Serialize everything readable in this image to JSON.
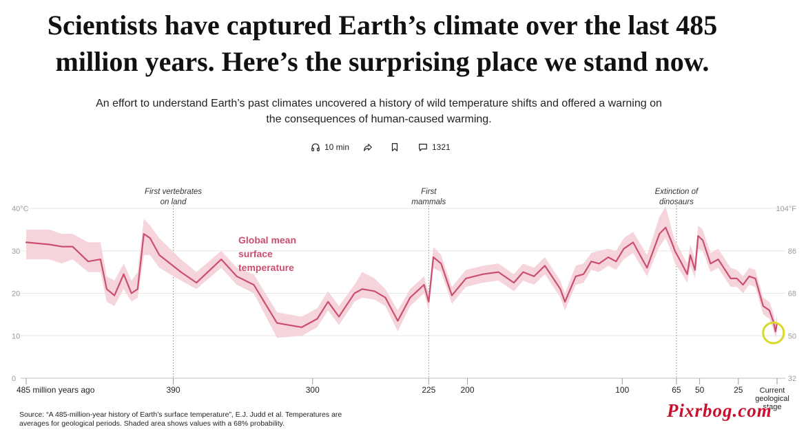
{
  "article": {
    "headline_line1": "Scientists have captured Earth’s climate over the last 485",
    "headline_line2": "million years. Here’s the surprising place we stand now.",
    "dek_line1": "An effort to understand Earth’s past climates uncovered a history of wild temperature shifts and offered a warning on",
    "dek_line2": "the consequences of human-caused warming.",
    "read_time": "10 min",
    "comment_count": "1321"
  },
  "icons": {
    "listen": "headphones-icon",
    "share": "share-arrow-icon",
    "save": "bookmark-icon",
    "comments": "comment-bubble-icon"
  },
  "chart_data": {
    "type": "line",
    "title": "",
    "xlabel": "",
    "ylabel": "",
    "series": [
      {
        "name": "Global mean surface temperature",
        "color": "#c94f6d",
        "band_color": "#f6d4dc",
        "points": [
          {
            "x": 485,
            "y": 32,
            "lo": 28,
            "hi": 35
          },
          {
            "x": 470,
            "y": 31.5,
            "lo": 28,
            "hi": 35
          },
          {
            "x": 462,
            "y": 31,
            "lo": 27,
            "hi": 34
          },
          {
            "x": 455,
            "y": 31,
            "lo": 28,
            "hi": 34
          },
          {
            "x": 445,
            "y": 27.5,
            "lo": 25,
            "hi": 32
          },
          {
            "x": 437,
            "y": 28,
            "lo": 25,
            "hi": 32
          },
          {
            "x": 433,
            "y": 21,
            "lo": 18,
            "hi": 24
          },
          {
            "x": 428,
            "y": 19.5,
            "lo": 17,
            "hi": 23
          },
          {
            "x": 422,
            "y": 24.5,
            "lo": 21,
            "hi": 27
          },
          {
            "x": 417,
            "y": 20,
            "lo": 18,
            "hi": 23
          },
          {
            "x": 413,
            "y": 21,
            "lo": 19,
            "hi": 25
          },
          {
            "x": 409,
            "y": 34,
            "lo": 29,
            "hi": 37.5
          },
          {
            "x": 405,
            "y": 33,
            "lo": 29,
            "hi": 36
          },
          {
            "x": 399,
            "y": 29,
            "lo": 26,
            "hi": 33
          },
          {
            "x": 385,
            "y": 25,
            "lo": 23,
            "hi": 28
          },
          {
            "x": 375,
            "y": 22.5,
            "lo": 21,
            "hi": 25
          },
          {
            "x": 359,
            "y": 28,
            "lo": 26,
            "hi": 30
          },
          {
            "x": 349,
            "y": 24,
            "lo": 22,
            "hi": 26
          },
          {
            "x": 338,
            "y": 22,
            "lo": 20,
            "hi": 24.5
          },
          {
            "x": 323,
            "y": 13,
            "lo": 9.5,
            "hi": 15.5
          },
          {
            "x": 307,
            "y": 12,
            "lo": 10,
            "hi": 14.5
          },
          {
            "x": 297,
            "y": 14,
            "lo": 12,
            "hi": 16.5
          },
          {
            "x": 290,
            "y": 18,
            "lo": 16,
            "hi": 20.5
          },
          {
            "x": 283,
            "y": 14.5,
            "lo": 12.5,
            "hi": 17
          },
          {
            "x": 273,
            "y": 20,
            "lo": 18,
            "hi": 22
          },
          {
            "x": 268,
            "y": 21,
            "lo": 19,
            "hi": 25
          },
          {
            "x": 260,
            "y": 20.5,
            "lo": 18.5,
            "hi": 23.5
          },
          {
            "x": 253,
            "y": 19,
            "lo": 17,
            "hi": 21
          },
          {
            "x": 245,
            "y": 13.5,
            "lo": 11,
            "hi": 16
          },
          {
            "x": 237,
            "y": 19,
            "lo": 17,
            "hi": 21
          },
          {
            "x": 228,
            "y": 22,
            "lo": 20,
            "hi": 24
          },
          {
            "x": 225,
            "y": 18,
            "lo": 16,
            "hi": 20
          },
          {
            "x": 222,
            "y": 28.5,
            "lo": 26,
            "hi": 31
          },
          {
            "x": 217,
            "y": 27,
            "lo": 25,
            "hi": 29
          },
          {
            "x": 210,
            "y": 19.5,
            "lo": 17.5,
            "hi": 21.5
          },
          {
            "x": 201,
            "y": 23.5,
            "lo": 21.5,
            "hi": 25.5
          },
          {
            "x": 190,
            "y": 24.5,
            "lo": 22.5,
            "hi": 26.5
          },
          {
            "x": 180,
            "y": 25,
            "lo": 23,
            "hi": 27
          },
          {
            "x": 170,
            "y": 22.5,
            "lo": 20.5,
            "hi": 24.5
          },
          {
            "x": 164,
            "y": 25,
            "lo": 23,
            "hi": 27
          },
          {
            "x": 157,
            "y": 24,
            "lo": 22,
            "hi": 26
          },
          {
            "x": 150,
            "y": 26.5,
            "lo": 24.5,
            "hi": 28.5
          },
          {
            "x": 140,
            "y": 21,
            "lo": 19,
            "hi": 23
          },
          {
            "x": 137,
            "y": 18,
            "lo": 16,
            "hi": 20
          },
          {
            "x": 130,
            "y": 24,
            "lo": 22,
            "hi": 26.5
          },
          {
            "x": 125,
            "y": 24.5,
            "lo": 22.5,
            "hi": 27
          },
          {
            "x": 120,
            "y": 27.5,
            "lo": 25.5,
            "hi": 29.5
          },
          {
            "x": 115,
            "y": 27,
            "lo": 25,
            "hi": 30
          },
          {
            "x": 109,
            "y": 28.5,
            "lo": 26.5,
            "hi": 30.5
          },
          {
            "x": 104,
            "y": 27.5,
            "lo": 25.5,
            "hi": 30
          },
          {
            "x": 99,
            "y": 30.5,
            "lo": 28,
            "hi": 33
          },
          {
            "x": 93,
            "y": 32,
            "lo": 29.5,
            "hi": 34.5
          },
          {
            "x": 84,
            "y": 26,
            "lo": 24,
            "hi": 29
          },
          {
            "x": 76,
            "y": 34,
            "lo": 31,
            "hi": 38
          },
          {
            "x": 72,
            "y": 35.5,
            "lo": 33,
            "hi": 40.5
          },
          {
            "x": 68,
            "y": 32,
            "lo": 29.5,
            "hi": 35
          },
          {
            "x": 66,
            "y": 30,
            "lo": 27,
            "hi": 32.5
          },
          {
            "x": 63,
            "y": 28,
            "lo": 25.5,
            "hi": 30.5
          },
          {
            "x": 58,
            "y": 24.5,
            "lo": 22.5,
            "hi": 27
          },
          {
            "x": 56,
            "y": 29,
            "lo": 26.5,
            "hi": 31.5
          },
          {
            "x": 53,
            "y": 25.5,
            "lo": 23.5,
            "hi": 28
          },
          {
            "x": 51,
            "y": 33.5,
            "lo": 30.5,
            "hi": 36
          },
          {
            "x": 48,
            "y": 32.5,
            "lo": 30,
            "hi": 35
          },
          {
            "x": 43,
            "y": 27,
            "lo": 25,
            "hi": 29.5
          },
          {
            "x": 38,
            "y": 28,
            "lo": 26,
            "hi": 30.5
          },
          {
            "x": 30,
            "y": 23.5,
            "lo": 21.5,
            "hi": 26
          },
          {
            "x": 26,
            "y": 23.5,
            "lo": 21.5,
            "hi": 25.5
          },
          {
            "x": 22,
            "y": 22,
            "lo": 20,
            "hi": 24
          },
          {
            "x": 18,
            "y": 24,
            "lo": 22,
            "hi": 26
          },
          {
            "x": 14,
            "y": 23.5,
            "lo": 21.5,
            "hi": 25.5
          },
          {
            "x": 9,
            "y": 17,
            "lo": 15,
            "hi": 19
          },
          {
            "x": 5,
            "y": 16,
            "lo": 14,
            "hi": 18
          },
          {
            "x": 2.5,
            "y": 13.5,
            "lo": 11.5,
            "hi": 15.5
          },
          {
            "x": 1,
            "y": 11,
            "lo": 9.5,
            "hi": 13
          },
          {
            "x": 0,
            "y": 13,
            "lo": 11.5,
            "hi": 15
          }
        ]
      }
    ],
    "series_label_lines": [
      "Global mean",
      "surface",
      "temperature"
    ],
    "xlim": [
      485,
      0
    ],
    "ylim": [
      0,
      40
    ],
    "x_ticks": [
      {
        "value": 485,
        "label": "485 million years ago"
      },
      {
        "value": 390,
        "label": "390"
      },
      {
        "value": 300,
        "label": "300"
      },
      {
        "value": 225,
        "label": "225"
      },
      {
        "value": 200,
        "label": "200"
      },
      {
        "value": 100,
        "label": "100"
      },
      {
        "value": 65,
        "label": "65"
      },
      {
        "value": 50,
        "label": "50"
      },
      {
        "value": 25,
        "label": "25"
      },
      {
        "value": 0,
        "label": "Current geological stage"
      }
    ],
    "y_ticks_left": [
      {
        "value": 0,
        "label": "0"
      },
      {
        "value": 10,
        "label": "10"
      },
      {
        "value": 20,
        "label": "20"
      },
      {
        "value": 30,
        "label": "30"
      },
      {
        "value": 40,
        "label": "40°C"
      }
    ],
    "y_ticks_right": [
      {
        "value": 0,
        "label": "32"
      },
      {
        "value": 10,
        "label": "50"
      },
      {
        "value": 20,
        "label": "68"
      },
      {
        "value": 30,
        "label": "86"
      },
      {
        "value": 40,
        "label": "104°F"
      }
    ],
    "grid": true,
    "annotations": [
      {
        "x": 390,
        "lines": [
          "First vertebrates",
          "on land"
        ]
      },
      {
        "x": 225,
        "lines": [
          "First",
          "mammals"
        ]
      },
      {
        "x": 65,
        "lines": [
          "Extinction of",
          "dinosaurs"
        ]
      }
    ],
    "highlight": {
      "x": 1,
      "y": 11,
      "color": "#d9d92a"
    }
  },
  "source": {
    "line1": "Source: “A 485-million-year history of Earth’s surface temperature”, E.J. Judd et al. Temperatures are",
    "line2": "averages for geological periods. Shaded area shows values with a 68% probability."
  },
  "watermark": {
    "text": "Pixrbog.com"
  }
}
